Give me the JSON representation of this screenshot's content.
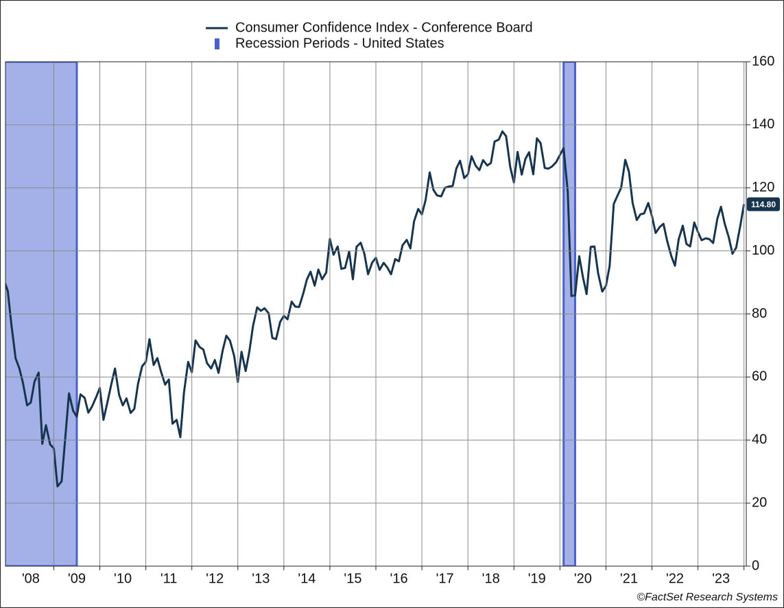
{
  "chart_data": {
    "type": "line",
    "legend_position": "top",
    "series": [
      {
        "name": "Consumer Confidence Index - Conference Board",
        "color": "#17344f",
        "end_label": "114.80",
        "x": [
          2007.92,
          2008.0,
          2008.08,
          2008.17,
          2008.25,
          2008.33,
          2008.42,
          2008.5,
          2008.58,
          2008.67,
          2008.75,
          2008.83,
          2008.92,
          2009.0,
          2009.08,
          2009.17,
          2009.25,
          2009.33,
          2009.42,
          2009.5,
          2009.58,
          2009.67,
          2009.75,
          2009.83,
          2009.92,
          2010.0,
          2010.08,
          2010.17,
          2010.25,
          2010.33,
          2010.42,
          2010.5,
          2010.58,
          2010.67,
          2010.75,
          2010.83,
          2010.92,
          2011.0,
          2011.08,
          2011.17,
          2011.25,
          2011.33,
          2011.42,
          2011.5,
          2011.58,
          2011.67,
          2011.75,
          2011.83,
          2011.92,
          2012.0,
          2012.08,
          2012.17,
          2012.25,
          2012.33,
          2012.42,
          2012.5,
          2012.58,
          2012.67,
          2012.75,
          2012.83,
          2012.92,
          2013.0,
          2013.08,
          2013.17,
          2013.25,
          2013.33,
          2013.42,
          2013.5,
          2013.58,
          2013.67,
          2013.75,
          2013.83,
          2013.92,
          2014.0,
          2014.08,
          2014.17,
          2014.25,
          2014.33,
          2014.42,
          2014.5,
          2014.58,
          2014.67,
          2014.75,
          2014.83,
          2014.92,
          2015.0,
          2015.08,
          2015.17,
          2015.25,
          2015.33,
          2015.42,
          2015.5,
          2015.58,
          2015.67,
          2015.75,
          2015.83,
          2015.92,
          2016.0,
          2016.08,
          2016.17,
          2016.25,
          2016.33,
          2016.42,
          2016.5,
          2016.58,
          2016.67,
          2016.75,
          2016.83,
          2016.92,
          2017.0,
          2017.08,
          2017.17,
          2017.25,
          2017.33,
          2017.42,
          2017.5,
          2017.58,
          2017.67,
          2017.75,
          2017.83,
          2017.92,
          2018.0,
          2018.08,
          2018.17,
          2018.25,
          2018.33,
          2018.42,
          2018.5,
          2018.58,
          2018.67,
          2018.75,
          2018.83,
          2018.92,
          2019.0,
          2019.08,
          2019.17,
          2019.25,
          2019.33,
          2019.42,
          2019.5,
          2019.58,
          2019.67,
          2019.75,
          2019.83,
          2019.92,
          2020.0,
          2020.08,
          2020.17,
          2020.25,
          2020.33,
          2020.42,
          2020.5,
          2020.58,
          2020.67,
          2020.75,
          2020.83,
          2020.92,
          2021.0,
          2021.08,
          2021.17,
          2021.25,
          2021.33,
          2021.42,
          2021.5,
          2021.58,
          2021.67,
          2021.75,
          2021.83,
          2021.92,
          2022.0,
          2022.08,
          2022.17,
          2022.25,
          2022.33,
          2022.42,
          2022.5,
          2022.58,
          2022.67,
          2022.75,
          2022.83,
          2022.92,
          2023.0,
          2023.08,
          2023.17,
          2023.25,
          2023.33,
          2023.42,
          2023.5,
          2023.58,
          2023.67,
          2023.75,
          2023.83,
          2023.92,
          2024.0
        ],
        "values": [
          90.6,
          87.3,
          76.4,
          65.9,
          62.8,
          58.1,
          51.0,
          51.9,
          58.5,
          61.4,
          38.8,
          44.7,
          38.6,
          37.4,
          25.3,
          26.9,
          40.8,
          54.8,
          49.3,
          47.4,
          54.5,
          53.4,
          48.7,
          50.6,
          53.6,
          56.5,
          46.4,
          52.3,
          57.7,
          62.7,
          54.3,
          51.0,
          53.2,
          48.6,
          49.9,
          57.8,
          63.4,
          64.8,
          72.0,
          63.8,
          66.0,
          61.7,
          57.6,
          59.2,
          45.2,
          46.4,
          40.9,
          55.2,
          64.8,
          61.5,
          71.6,
          69.5,
          68.7,
          64.4,
          62.7,
          65.4,
          61.3,
          68.4,
          73.1,
          71.5,
          66.7,
          58.4,
          68.0,
          61.9,
          68.1,
          76.2,
          82.1,
          81.0,
          81.8,
          80.2,
          72.4,
          72.0,
          77.5,
          79.4,
          78.3,
          83.9,
          82.3,
          82.2,
          86.4,
          90.9,
          93.4,
          89.0,
          94.1,
          91.0,
          93.1,
          103.8,
          98.8,
          101.4,
          94.3,
          94.6,
          99.8,
          91.0,
          101.3,
          102.6,
          99.1,
          92.6,
          96.3,
          97.8,
          94.0,
          96.2,
          94.7,
          92.6,
          97.4,
          96.7,
          101.8,
          103.5,
          100.8,
          109.4,
          113.3,
          111.6,
          116.1,
          124.9,
          119.4,
          117.6,
          117.3,
          120.0,
          120.4,
          120.6,
          126.2,
          128.6,
          123.1,
          124.3,
          130.0,
          127.0,
          125.6,
          128.8,
          127.1,
          127.9,
          134.7,
          135.3,
          137.9,
          136.4,
          126.6,
          121.7,
          131.4,
          124.2,
          129.2,
          131.3,
          124.3,
          135.7,
          134.2,
          126.3,
          126.1,
          126.8,
          128.2,
          130.4,
          132.6,
          118.8,
          85.7,
          85.9,
          98.3,
          91.7,
          86.3,
          101.3,
          101.4,
          92.9,
          87.1,
          88.9,
          95.2,
          114.9,
          117.5,
          120.0,
          128.9,
          125.1,
          115.2,
          109.8,
          111.6,
          111.9,
          115.2,
          111.1,
          105.7,
          107.6,
          108.6,
          103.2,
          98.4,
          95.3,
          103.6,
          108.0,
          102.2,
          101.4,
          109.0,
          106.0,
          103.4,
          104.0,
          103.7,
          102.5,
          110.1,
          114.0,
          108.7,
          104.3,
          99.1,
          101.0,
          108.0,
          114.8
        ]
      }
    ],
    "recessions": {
      "name": "Recession Periods - United States",
      "color": "#a3b1e8",
      "edge_color": "#4a62c8",
      "periods": [
        {
          "start": 2007.92,
          "end": 2009.5
        },
        {
          "start": 2020.08,
          "end": 2020.33
        }
      ]
    },
    "xlim": [
      2007.95,
      2024.05
    ],
    "xticks": [
      2009,
      2010,
      2011,
      2012,
      2013,
      2014,
      2015,
      2016,
      2017,
      2018,
      2019,
      2020,
      2021,
      2022,
      2023,
      2024
    ],
    "xtick_labels": [
      {
        "value": 2008.5,
        "label": "'08"
      },
      {
        "value": 2009.5,
        "label": "'09"
      },
      {
        "value": 2010.5,
        "label": "'10"
      },
      {
        "value": 2011.5,
        "label": "'11"
      },
      {
        "value": 2012.5,
        "label": "'12"
      },
      {
        "value": 2013.5,
        "label": "'13"
      },
      {
        "value": 2014.5,
        "label": "'14"
      },
      {
        "value": 2015.5,
        "label": "'15"
      },
      {
        "value": 2016.5,
        "label": "'16"
      },
      {
        "value": 2017.5,
        "label": "'17"
      },
      {
        "value": 2018.5,
        "label": "'18"
      },
      {
        "value": 2019.5,
        "label": "'19"
      },
      {
        "value": 2020.5,
        "label": "'20"
      },
      {
        "value": 2021.5,
        "label": "'21"
      },
      {
        "value": 2022.5,
        "label": "'22"
      },
      {
        "value": 2023.5,
        "label": "'23"
      }
    ],
    "ylim": [
      0,
      160
    ],
    "yticks": [
      0,
      20,
      40,
      60,
      80,
      100,
      120,
      140,
      160
    ],
    "y_axis_side": "right",
    "grid": true,
    "source": "©FactSet Research Systems"
  }
}
